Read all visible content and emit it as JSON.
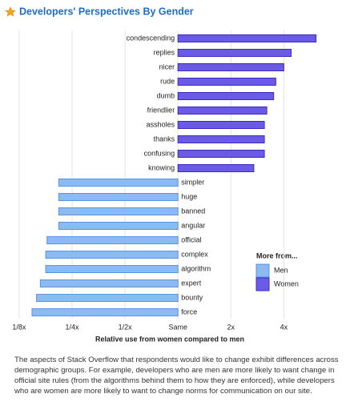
{
  "chart_data": {
    "type": "bar",
    "orientation": "horizontal",
    "title": "Developers' Perspectives By Gender",
    "x_label": "Relative use from women compared to men",
    "legend_title": "More from...",
    "categories": [
      "condescending",
      "replies",
      "nicer",
      "rude",
      "dumb",
      "friendlier",
      "assholes",
      "thanks",
      "confusing",
      "knowing",
      "simpler",
      "huge",
      "banned",
      "angular",
      "official",
      "complex",
      "algorithm",
      "expert",
      "bounty",
      "force"
    ],
    "series": [
      {
        "name": "Men",
        "color": "#8cbaf2",
        "values": [
          null,
          null,
          null,
          null,
          null,
          null,
          null,
          null,
          null,
          null,
          0.21,
          0.21,
          0.21,
          0.21,
          0.18,
          0.177,
          0.177,
          0.165,
          0.157,
          0.148
        ]
      },
      {
        "name": "Women",
        "color": "#6a5ae6",
        "values": [
          6.1,
          4.4,
          4.0,
          3.6,
          3.5,
          3.2,
          3.1,
          3.1,
          3.1,
          2.7,
          null,
          null,
          null,
          null,
          null,
          null,
          null,
          null,
          null,
          null
        ]
      }
    ],
    "xscale": "log",
    "xlim": [
      0.12,
      6.8
    ],
    "xticks": [
      {
        "value": 0.125,
        "label": "1/8x"
      },
      {
        "value": 0.25,
        "label": "1/4x"
      },
      {
        "value": 0.5,
        "label": "1/2x"
      },
      {
        "value": 1,
        "label": "Same"
      },
      {
        "value": 2,
        "label": "2x"
      },
      {
        "value": 4,
        "label": "4x"
      }
    ],
    "grid": true
  },
  "caption": "The aspects of Stack Overflow that respondents would like to change exhibit differences across demographic groups. For example, developers who are men are more likely to want change in official site rules (from the algorithms behind them to how they are enforced), while developers who are women are more likely to want to change norms for communication on our site."
}
